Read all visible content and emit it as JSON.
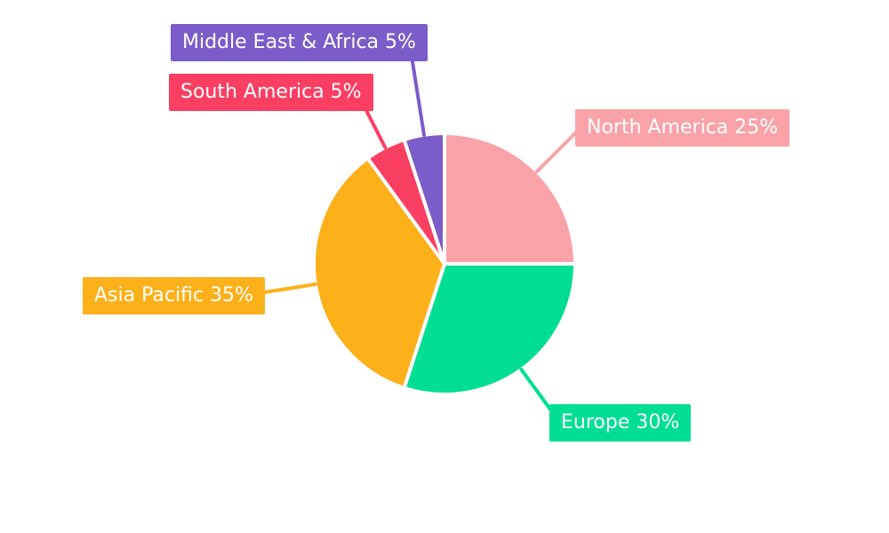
{
  "chart_data": {
    "type": "pie",
    "categories": [
      "North America",
      "Europe",
      "Asia Pacific",
      "South America",
      "Middle East & Africa"
    ],
    "values": [
      25,
      30,
      35,
      5,
      5
    ],
    "unit": "%",
    "segments": [
      {
        "label": "North America",
        "value": 25,
        "label_text": "North America 25%",
        "color": "#F9A3A8"
      },
      {
        "label": "Europe",
        "value": 30,
        "label_text": "Europe 30%",
        "color": "#00DE94"
      },
      {
        "label": "Asia Pacific",
        "value": 35,
        "label_text": "Asia Pacific 35%",
        "color": "#FCB01A"
      },
      {
        "label": "South America",
        "value": 5,
        "label_text": "South America 5%",
        "color": "#FB3F63"
      },
      {
        "label": "Middle East & Africa",
        "value": 5,
        "label_text": "Middle East & Africa 5%",
        "color": "#7A5DC9"
      }
    ],
    "layout_hints": {
      "start_angle_deg": 0,
      "direction": "clockwise",
      "legend": "none",
      "labels": "external-colored-boxes-with-leader-lines",
      "slice_gap_color": "#ffffff",
      "label_text_color": "#ffffff",
      "background": "#ffffff"
    }
  }
}
